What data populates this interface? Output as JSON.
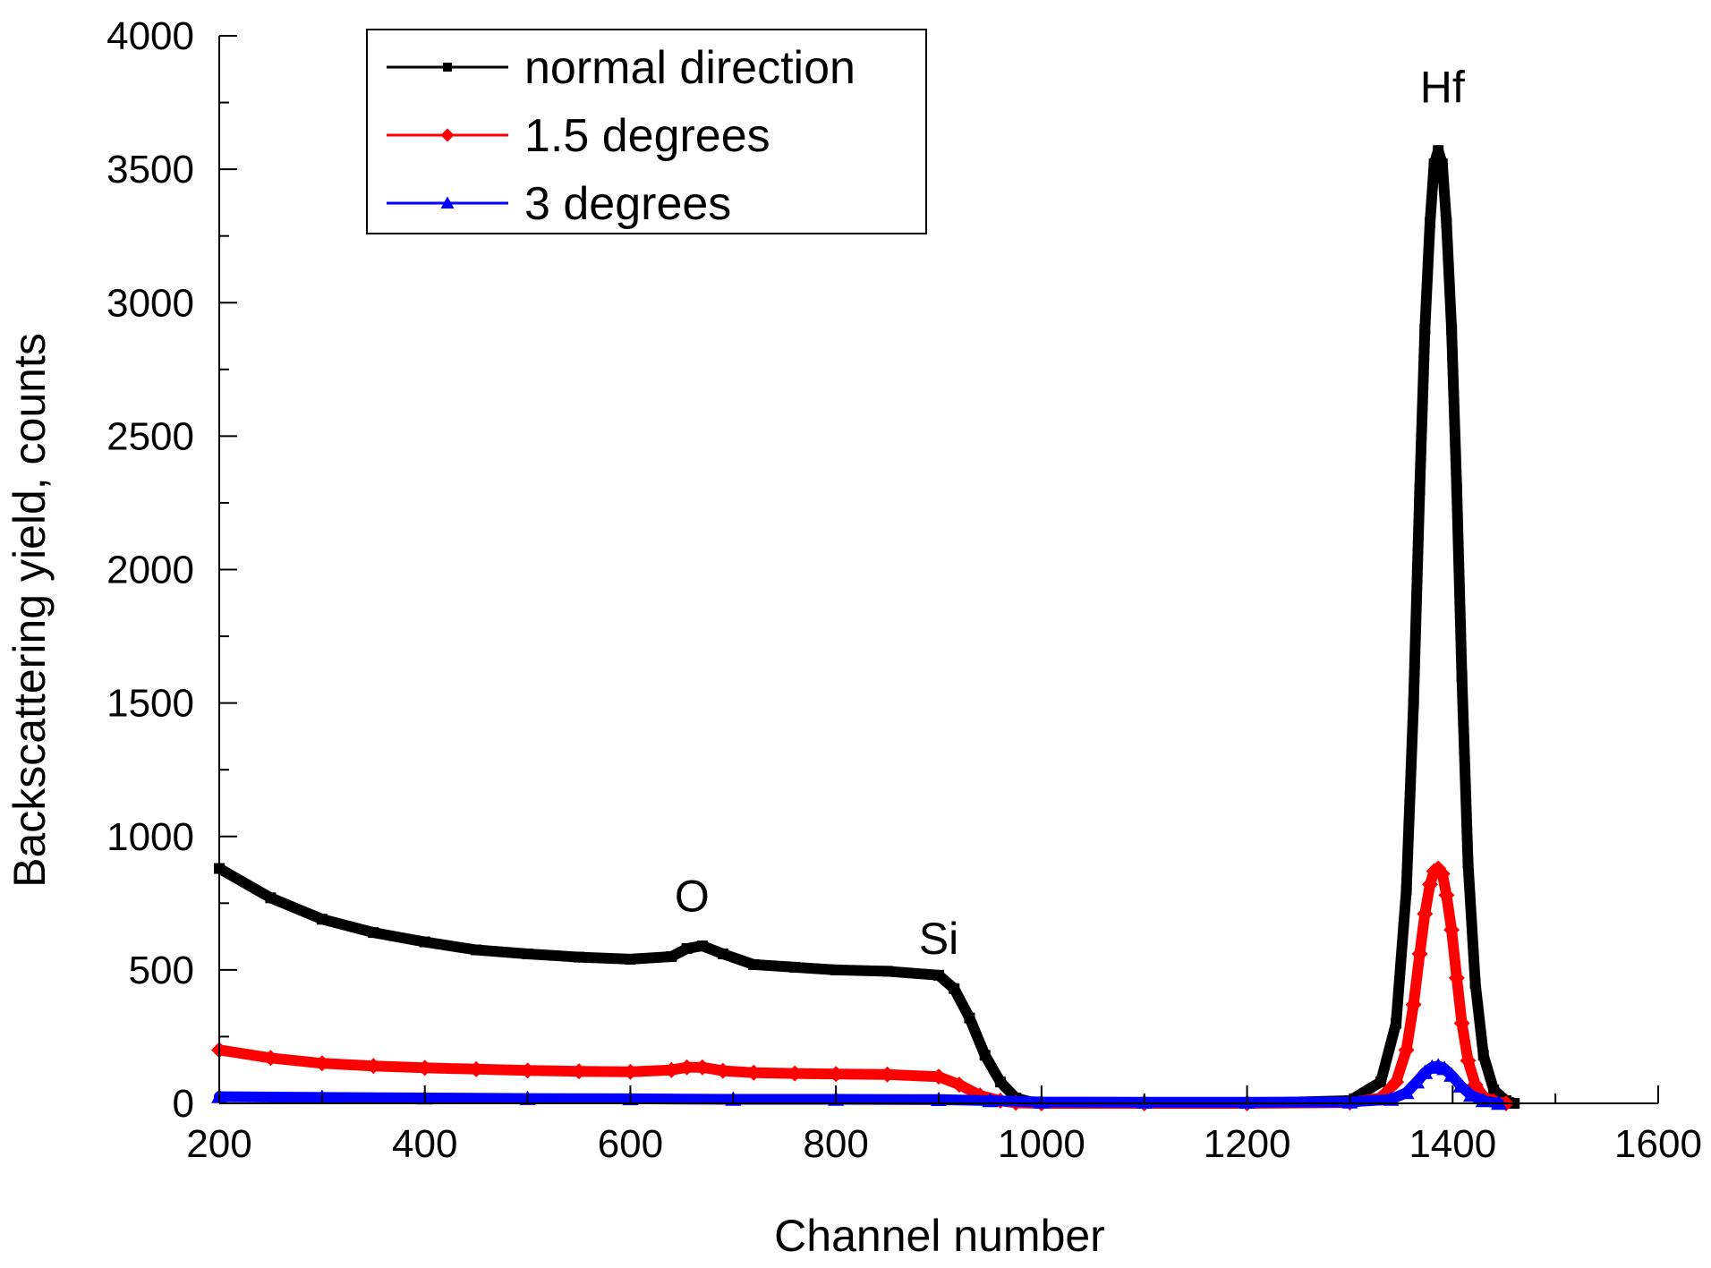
{
  "chart_data": {
    "type": "line",
    "title": "",
    "xlabel": "Channel number",
    "ylabel": "Backscattering yield, counts",
    "xlim": [
      200,
      1600
    ],
    "ylim": [
      0,
      4000
    ],
    "x_ticks": [
      200,
      400,
      600,
      800,
      1000,
      1200,
      1400,
      1600
    ],
    "y_ticks": [
      0,
      500,
      1000,
      1500,
      2000,
      2500,
      3000,
      3500,
      4000
    ],
    "x_tick_labels": [
      "200",
      "400",
      "600",
      "800",
      "1000",
      "1200",
      "1400",
      "1600"
    ],
    "y_tick_labels": [
      "0",
      "500",
      "1000",
      "1500",
      "2000",
      "2500",
      "3000",
      "3500",
      "4000"
    ],
    "legend_position": "top-left",
    "series": [
      {
        "name": "normal direction",
        "color": "#000000",
        "marker": "square",
        "x": [
          200,
          250,
          300,
          350,
          400,
          450,
          500,
          550,
          600,
          640,
          655,
          670,
          690,
          720,
          760,
          800,
          850,
          900,
          915,
          930,
          945,
          960,
          975,
          990,
          1000,
          1100,
          1200,
          1300,
          1330,
          1345,
          1355,
          1362,
          1368,
          1373,
          1378,
          1382,
          1386,
          1390,
          1394,
          1399,
          1404,
          1409,
          1415,
          1422,
          1430,
          1440,
          1452,
          1460
        ],
        "y": [
          880,
          770,
          690,
          640,
          605,
          575,
          560,
          548,
          540,
          550,
          580,
          590,
          560,
          520,
          510,
          500,
          495,
          480,
          430,
          320,
          180,
          80,
          20,
          5,
          0,
          0,
          0,
          10,
          80,
          300,
          800,
          1500,
          2300,
          2900,
          3300,
          3520,
          3570,
          3520,
          3300,
          2900,
          2300,
          1600,
          900,
          450,
          180,
          50,
          10,
          0
        ]
      },
      {
        "name": "1.5 degrees",
        "color": "#ff0000",
        "marker": "diamond",
        "x": [
          200,
          250,
          300,
          350,
          400,
          450,
          500,
          550,
          600,
          640,
          655,
          670,
          690,
          720,
          760,
          800,
          850,
          900,
          920,
          940,
          960,
          975,
          1000,
          1100,
          1200,
          1300,
          1330,
          1345,
          1355,
          1362,
          1368,
          1373,
          1378,
          1382,
          1386,
          1390,
          1394,
          1399,
          1404,
          1409,
          1415,
          1422,
          1430,
          1440,
          1452
        ],
        "y": [
          200,
          170,
          150,
          140,
          133,
          128,
          123,
          120,
          118,
          125,
          135,
          135,
          122,
          115,
          112,
          110,
          108,
          100,
          70,
          30,
          10,
          2,
          0,
          0,
          0,
          3,
          20,
          80,
          200,
          370,
          560,
          710,
          820,
          870,
          880,
          860,
          780,
          650,
          470,
          300,
          160,
          70,
          25,
          8,
          0
        ]
      },
      {
        "name": "3 degrees",
        "color": "#0000ff",
        "marker": "triangle",
        "x": [
          200,
          300,
          400,
          500,
          600,
          700,
          800,
          900,
          950,
          1000,
          1100,
          1200,
          1300,
          1340,
          1355,
          1365,
          1373,
          1380,
          1386,
          1392,
          1399,
          1408,
          1418,
          1430,
          1445
        ],
        "y": [
          25,
          22,
          20,
          18,
          17,
          15,
          15,
          14,
          10,
          5,
          4,
          4,
          5,
          15,
          40,
          80,
          115,
          135,
          140,
          130,
          105,
          65,
          30,
          10,
          0
        ]
      }
    ],
    "annotations": [
      {
        "text": "O",
        "x": 660,
        "y": 720
      },
      {
        "text": "Si",
        "x": 900,
        "y": 560
      },
      {
        "text": "Hf",
        "x": 1390,
        "y": 3750
      }
    ]
  }
}
